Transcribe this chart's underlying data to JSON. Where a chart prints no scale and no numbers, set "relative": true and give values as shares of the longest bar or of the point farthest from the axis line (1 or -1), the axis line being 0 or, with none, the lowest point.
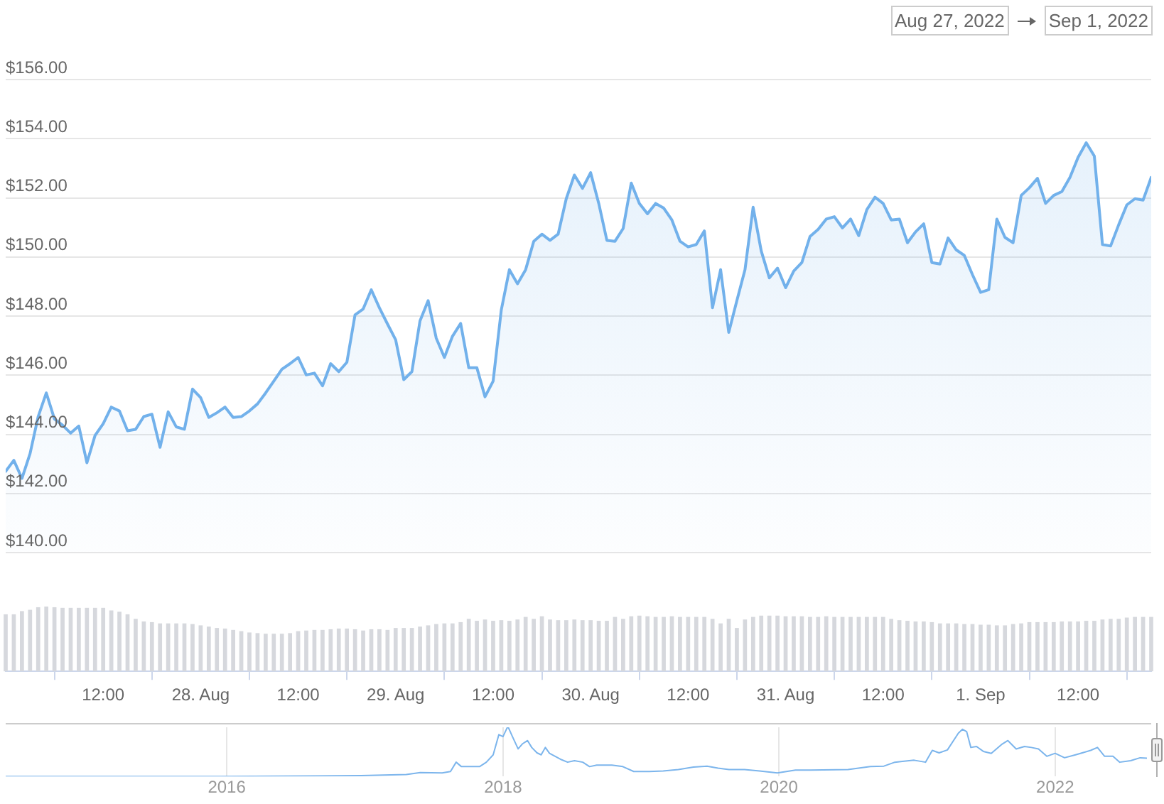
{
  "chart_data": [
    {
      "type": "area",
      "annotations": [
        "Aug 27, 2022",
        "Sep 1, 2022"
      ],
      "grid": "y",
      "tick_labels": "y",
      "color": "#72b1eb",
      "xlim": [
        "2022-08-27T00:00",
        "2022-09-01T21:00"
      ],
      "ylim": [
        140,
        156
      ],
      "yticks": [
        {
          "value": 140,
          "label": "$140.00"
        },
        {
          "value": 142,
          "label": "$142.00"
        },
        {
          "value": 144,
          "label": "$144.00"
        },
        {
          "value": 146,
          "label": "$146.00"
        },
        {
          "value": 148,
          "label": "$148.00"
        },
        {
          "value": 150,
          "label": "$150.00"
        },
        {
          "value": 152,
          "label": "$152.00"
        },
        {
          "value": 154,
          "label": "$154.00"
        },
        {
          "value": 156,
          "label": "$156.00"
        }
      ],
      "x": [
        "2022-08-27T00:00",
        "2022-08-27T01:00",
        "2022-08-27T02:00",
        "2022-08-27T03:00",
        "2022-08-27T04:00",
        "2022-08-27T05:00",
        "2022-08-27T06:00",
        "2022-08-27T07:00",
        "2022-08-27T08:00",
        "2022-08-27T09:00",
        "2022-08-27T10:00",
        "2022-08-27T11:00",
        "2022-08-27T12:00",
        "2022-08-27T13:00",
        "2022-08-27T14:00",
        "2022-08-27T15:00",
        "2022-08-27T16:00",
        "2022-08-27T17:00",
        "2022-08-27T18:00",
        "2022-08-27T19:00",
        "2022-08-27T20:00",
        "2022-08-27T21:00",
        "2022-08-27T22:00",
        "2022-08-27T23:00",
        "2022-08-28T00:00",
        "2022-08-28T01:00",
        "2022-08-28T02:00",
        "2022-08-28T03:00",
        "2022-08-28T04:00",
        "2022-08-28T05:00",
        "2022-08-28T06:00",
        "2022-08-28T07:00",
        "2022-08-28T08:00",
        "2022-08-28T09:00",
        "2022-08-28T10:00",
        "2022-08-28T11:00",
        "2022-08-28T12:00",
        "2022-08-28T13:00",
        "2022-08-28T14:00",
        "2022-08-28T15:00",
        "2022-08-28T16:00",
        "2022-08-28T17:00",
        "2022-08-28T18:00",
        "2022-08-28T19:00",
        "2022-08-28T20:00",
        "2022-08-28T21:00",
        "2022-08-28T22:00",
        "2022-08-28T23:00",
        "2022-08-29T00:00",
        "2022-08-29T01:00",
        "2022-08-29T02:00",
        "2022-08-29T03:00",
        "2022-08-29T04:00",
        "2022-08-29T05:00",
        "2022-08-29T06:00",
        "2022-08-29T07:00",
        "2022-08-29T08:00",
        "2022-08-29T09:00",
        "2022-08-29T10:00",
        "2022-08-29T11:00",
        "2022-08-29T12:00",
        "2022-08-29T13:00",
        "2022-08-29T14:00",
        "2022-08-29T15:00",
        "2022-08-29T16:00",
        "2022-08-29T17:00",
        "2022-08-29T18:00",
        "2022-08-29T19:00",
        "2022-08-29T20:00",
        "2022-08-29T21:00",
        "2022-08-29T22:00",
        "2022-08-29T23:00",
        "2022-08-30T00:00",
        "2022-08-30T01:00",
        "2022-08-30T02:00",
        "2022-08-30T03:00",
        "2022-08-30T04:00",
        "2022-08-30T05:00",
        "2022-08-30T06:00",
        "2022-08-30T07:00",
        "2022-08-30T08:00",
        "2022-08-30T09:00",
        "2022-08-30T10:00",
        "2022-08-30T11:00",
        "2022-08-30T12:00",
        "2022-08-30T13:00",
        "2022-08-30T14:00",
        "2022-08-30T15:00",
        "2022-08-30T16:00",
        "2022-08-30T17:00",
        "2022-08-30T18:00",
        "2022-08-30T19:00",
        "2022-08-30T20:00",
        "2022-08-30T21:00",
        "2022-08-30T22:00",
        "2022-08-30T23:00",
        "2022-08-31T00:00",
        "2022-08-31T01:00",
        "2022-08-31T02:00",
        "2022-08-31T03:00",
        "2022-08-31T04:00",
        "2022-08-31T05:00",
        "2022-08-31T06:00",
        "2022-08-31T07:00",
        "2022-08-31T08:00",
        "2022-08-31T09:00",
        "2022-08-31T10:00",
        "2022-08-31T11:00",
        "2022-08-31T12:00",
        "2022-08-31T13:00",
        "2022-08-31T14:00",
        "2022-08-31T15:00",
        "2022-08-31T16:00",
        "2022-08-31T17:00",
        "2022-08-31T18:00",
        "2022-08-31T19:00",
        "2022-08-31T20:00",
        "2022-08-31T21:00",
        "2022-08-31T22:00",
        "2022-08-31T23:00",
        "2022-09-01T00:00",
        "2022-09-01T01:00",
        "2022-09-01T02:00",
        "2022-09-01T03:00",
        "2022-09-01T04:00",
        "2022-09-01T05:00",
        "2022-09-01T06:00",
        "2022-09-01T07:00",
        "2022-09-01T08:00",
        "2022-09-01T09:00",
        "2022-09-01T10:00",
        "2022-09-01T11:00",
        "2022-09-01T12:00",
        "2022-09-01T13:00",
        "2022-09-01T14:00",
        "2022-09-01T15:00",
        "2022-09-01T16:00",
        "2022-09-01T17:00",
        "2022-09-01T18:00",
        "2022-09-01T19:00",
        "2022-09-01T20:00",
        "2022-09-01T21:00"
      ],
      "values": [
        142.75,
        143.12,
        142.51,
        143.35,
        144.6,
        145.4,
        144.52,
        144.31,
        144.04,
        144.28,
        143.04,
        143.96,
        144.36,
        144.92,
        144.79,
        144.12,
        144.17,
        144.6,
        144.68,
        143.56,
        144.76,
        144.25,
        144.17,
        145.53,
        145.24,
        144.57,
        144.73,
        144.92,
        144.57,
        144.6,
        144.79,
        145.03,
        145.4,
        145.8,
        146.2,
        146.39,
        146.6,
        146.01,
        146.07,
        145.64,
        146.39,
        146.12,
        146.44,
        148.04,
        148.24,
        148.89,
        148.28,
        147.73,
        147.2,
        145.85,
        146.12,
        147.84,
        148.52,
        147.25,
        146.6,
        147.32,
        147.75,
        146.25,
        146.25,
        145.27,
        145.8,
        148.2,
        149.57,
        149.09,
        149.57,
        150.53,
        150.77,
        150.56,
        150.77,
        151.97,
        152.77,
        152.32,
        152.85,
        151.81,
        150.56,
        150.53,
        150.96,
        152.5,
        151.81,
        151.46,
        151.81,
        151.65,
        151.25,
        150.53,
        150.34,
        150.42,
        150.88,
        148.28,
        149.57,
        147.45,
        148.52,
        149.57,
        151.68,
        150.2,
        149.29,
        149.62,
        148.96,
        149.52,
        149.81,
        150.69,
        150.93,
        151.28,
        151.36,
        150.98,
        151.28,
        150.72,
        151.6,
        152.02,
        151.81,
        151.25,
        151.28,
        150.48,
        150.85,
        151.12,
        149.81,
        149.76,
        150.64,
        150.24,
        150.05,
        149.4,
        148.8,
        148.89,
        151.28,
        150.66,
        150.48,
        152.08,
        152.34,
        152.66,
        151.81,
        152.08,
        152.21,
        152.69,
        153.37,
        153.86,
        153.41,
        150.42,
        150.37,
        151.09,
        151.76,
        151.97,
        151.92,
        152.69
      ]
    },
    {
      "type": "bar",
      "relative": true,
      "tick_labels": "x",
      "color": "#d6d8dd",
      "xlim": [
        "2022-08-27T00:00",
        "2022-09-01T21:00"
      ],
      "xticks": [
        {
          "value": "2022-08-27T12:00",
          "label": "12:00"
        },
        {
          "value": "2022-08-28T00:00",
          "label": "28. Aug"
        },
        {
          "value": "2022-08-28T12:00",
          "label": "12:00"
        },
        {
          "value": "2022-08-29T00:00",
          "label": "29. Aug"
        },
        {
          "value": "2022-08-29T12:00",
          "label": "12:00"
        },
        {
          "value": "2022-08-30T00:00",
          "label": "30. Aug"
        },
        {
          "value": "2022-08-30T12:00",
          "label": "12:00"
        },
        {
          "value": "2022-08-31T00:00",
          "label": "31. Aug"
        },
        {
          "value": "2022-08-31T12:00",
          "label": "12:00"
        },
        {
          "value": "2022-09-01T00:00",
          "label": "1. Sep"
        },
        {
          "value": "2022-09-01T12:00",
          "label": "12:00"
        }
      ],
      "x": [
        "2022-08-27T00:00",
        "2022-08-27T01:00",
        "2022-08-27T02:00",
        "2022-08-27T03:00",
        "2022-08-27T04:00",
        "2022-08-27T05:00",
        "2022-08-27T06:00",
        "2022-08-27T07:00",
        "2022-08-27T08:00",
        "2022-08-27T09:00",
        "2022-08-27T10:00",
        "2022-08-27T11:00",
        "2022-08-27T12:00",
        "2022-08-27T13:00",
        "2022-08-27T14:00",
        "2022-08-27T15:00",
        "2022-08-27T16:00",
        "2022-08-27T17:00",
        "2022-08-27T18:00",
        "2022-08-27T19:00",
        "2022-08-27T20:00",
        "2022-08-27T21:00",
        "2022-08-27T22:00",
        "2022-08-27T23:00",
        "2022-08-28T00:00",
        "2022-08-28T01:00",
        "2022-08-28T02:00",
        "2022-08-28T03:00",
        "2022-08-28T04:00",
        "2022-08-28T05:00",
        "2022-08-28T06:00",
        "2022-08-28T07:00",
        "2022-08-28T08:00",
        "2022-08-28T09:00",
        "2022-08-28T10:00",
        "2022-08-28T11:00",
        "2022-08-28T12:00",
        "2022-08-28T13:00",
        "2022-08-28T14:00",
        "2022-08-28T15:00",
        "2022-08-28T16:00",
        "2022-08-28T17:00",
        "2022-08-28T18:00",
        "2022-08-28T19:00",
        "2022-08-28T20:00",
        "2022-08-28T21:00",
        "2022-08-28T22:00",
        "2022-08-28T23:00",
        "2022-08-29T00:00",
        "2022-08-29T01:00",
        "2022-08-29T02:00",
        "2022-08-29T03:00",
        "2022-08-29T04:00",
        "2022-08-29T05:00",
        "2022-08-29T06:00",
        "2022-08-29T07:00",
        "2022-08-29T08:00",
        "2022-08-29T09:00",
        "2022-08-29T10:00",
        "2022-08-29T11:00",
        "2022-08-29T12:00",
        "2022-08-29T13:00",
        "2022-08-29T14:00",
        "2022-08-29T15:00",
        "2022-08-29T16:00",
        "2022-08-29T17:00",
        "2022-08-29T18:00",
        "2022-08-29T19:00",
        "2022-08-29T20:00",
        "2022-08-29T21:00",
        "2022-08-29T22:00",
        "2022-08-29T23:00",
        "2022-08-30T00:00",
        "2022-08-30T01:00",
        "2022-08-30T02:00",
        "2022-08-30T03:00",
        "2022-08-30T04:00",
        "2022-08-30T05:00",
        "2022-08-30T06:00",
        "2022-08-30T07:00",
        "2022-08-30T08:00",
        "2022-08-30T09:00",
        "2022-08-30T10:00",
        "2022-08-30T11:00",
        "2022-08-30T12:00",
        "2022-08-30T13:00",
        "2022-08-30T14:00",
        "2022-08-30T15:00",
        "2022-08-30T16:00",
        "2022-08-30T17:00",
        "2022-08-30T18:00",
        "2022-08-30T19:00",
        "2022-08-30T20:00",
        "2022-08-30T21:00",
        "2022-08-30T22:00",
        "2022-08-30T23:00",
        "2022-08-31T00:00",
        "2022-08-31T01:00",
        "2022-08-31T02:00",
        "2022-08-31T03:00",
        "2022-08-31T04:00",
        "2022-08-31T05:00",
        "2022-08-31T06:00",
        "2022-08-31T07:00",
        "2022-08-31T08:00",
        "2022-08-31T09:00",
        "2022-08-31T10:00",
        "2022-08-31T11:00",
        "2022-08-31T12:00",
        "2022-08-31T13:00",
        "2022-08-31T14:00",
        "2022-08-31T15:00",
        "2022-08-31T16:00",
        "2022-08-31T17:00",
        "2022-08-31T18:00",
        "2022-08-31T19:00",
        "2022-08-31T20:00",
        "2022-08-31T21:00",
        "2022-08-31T22:00",
        "2022-08-31T23:00",
        "2022-09-01T00:00",
        "2022-09-01T01:00",
        "2022-09-01T02:00",
        "2022-09-01T03:00",
        "2022-09-01T04:00",
        "2022-09-01T05:00",
        "2022-09-01T06:00",
        "2022-09-01T07:00",
        "2022-09-01T08:00",
        "2022-09-01T09:00",
        "2022-09-01T10:00",
        "2022-09-01T11:00",
        "2022-09-01T12:00",
        "2022-09-01T13:00",
        "2022-09-01T14:00",
        "2022-09-01T15:00",
        "2022-09-01T16:00",
        "2022-09-01T17:00",
        "2022-09-01T18:00",
        "2022-09-01T19:00",
        "2022-09-01T20:00",
        "2022-09-01T21:00"
      ],
      "values": [
        0.88,
        0.88,
        0.93,
        0.95,
        0.99,
        1,
        0.99,
        0.98,
        0.98,
        0.98,
        0.98,
        0.98,
        0.98,
        0.94,
        0.92,
        0.88,
        0.81,
        0.77,
        0.76,
        0.74,
        0.74,
        0.74,
        0.74,
        0.73,
        0.71,
        0.69,
        0.67,
        0.66,
        0.64,
        0.62,
        0.6,
        0.59,
        0.58,
        0.58,
        0.58,
        0.59,
        0.62,
        0.63,
        0.64,
        0.64,
        0.65,
        0.66,
        0.66,
        0.65,
        0.63,
        0.65,
        0.65,
        0.64,
        0.67,
        0.67,
        0.67,
        0.69,
        0.71,
        0.73,
        0.74,
        0.74,
        0.76,
        0.81,
        0.78,
        0.8,
        0.78,
        0.79,
        0.78,
        0.8,
        0.84,
        0.81,
        0.85,
        0.8,
        0.79,
        0.79,
        0.8,
        0.79,
        0.79,
        0.78,
        0.78,
        0.84,
        0.81,
        0.85,
        0.86,
        0.85,
        0.84,
        0.84,
        0.85,
        0.84,
        0.84,
        0.84,
        0.84,
        0.81,
        0.74,
        0.81,
        0.67,
        0.8,
        0.84,
        0.86,
        0.86,
        0.86,
        0.85,
        0.85,
        0.85,
        0.84,
        0.84,
        0.85,
        0.84,
        0.84,
        0.84,
        0.84,
        0.84,
        0.84,
        0.84,
        0.81,
        0.79,
        0.78,
        0.77,
        0.77,
        0.76,
        0.74,
        0.74,
        0.74,
        0.73,
        0.73,
        0.72,
        0.72,
        0.71,
        0.71,
        0.73,
        0.74,
        0.76,
        0.76,
        0.76,
        0.76,
        0.77,
        0.77,
        0.77,
        0.78,
        0.78,
        0.8,
        0.81,
        0.81,
        0.83,
        0.84,
        0.84,
        0.84
      ]
    },
    {
      "type": "line",
      "relative": true,
      "grid": "x",
      "tick_labels": "x",
      "color": "#7cb5ec",
      "xlim": [
        "2014-05-26",
        "2022-09-01"
      ],
      "xticks": [
        {
          "value": "2016-01-01",
          "label": "2016"
        },
        {
          "value": "2018-01-01",
          "label": "2018"
        },
        {
          "value": "2020-01-01",
          "label": "2020"
        },
        {
          "value": "2022-01-01",
          "label": "2022"
        }
      ],
      "x": [
        "2014-05-26",
        "2015-12-16",
        "2016-08-29",
        "2017-01-11",
        "2017-04-20",
        "2017-05-27",
        "2017-07-24",
        "2017-08-15",
        "2017-08-30",
        "2017-09-13",
        "2017-10-31",
        "2017-11-18",
        "2017-12-06",
        "2017-12-21",
        "2018-01-01",
        "2018-01-12",
        "2018-01-15",
        "2018-01-26",
        "2018-02-10",
        "2018-02-21",
        "2018-03-07",
        "2018-03-18",
        "2018-04-01",
        "2018-04-12",
        "2018-04-23",
        "2018-05-04",
        "2018-06-02",
        "2018-06-21",
        "2018-07-09",
        "2018-07-31",
        "2018-08-18",
        "2018-09-06",
        "2018-10-16",
        "2018-11-14",
        "2018-12-13",
        "2019-01-23",
        "2019-03-01",
        "2019-04-10",
        "2019-05-20",
        "2019-06-25",
        "2019-07-24",
        "2019-08-22",
        "2019-10-02",
        "2019-11-11",
        "2019-12-28",
        "2020-02-14",
        "2020-03-25",
        "2020-07-02",
        "2020-08-30",
        "2020-10-05",
        "2020-11-03",
        "2020-12-24",
        "2021-01-23",
        "2021-02-10",
        "2021-02-28",
        "2021-03-22",
        "2021-04-20",
        "2021-05-01",
        "2021-05-12",
        "2021-05-23",
        "2021-06-07",
        "2021-06-25",
        "2021-07-16",
        "2021-08-14",
        "2021-08-29",
        "2021-09-20",
        "2021-10-12",
        "2021-10-30",
        "2021-11-18",
        "2021-12-10",
        "2022-01-01",
        "2022-01-26",
        "2022-02-24",
        "2022-04-05",
        "2022-04-23",
        "2022-05-12",
        "2022-06-03",
        "2022-06-21",
        "2022-07-20",
        "2022-08-14",
        "2022-09-01"
      ],
      "values": [
        0,
        0,
        0.01,
        0.02,
        0.04,
        0.08,
        0.07,
        0.1,
        0.29,
        0.2,
        0.2,
        0.29,
        0.44,
        0.85,
        0.81,
        0.99,
        1,
        0.81,
        0.56,
        0.66,
        0.73,
        0.59,
        0.48,
        0.44,
        0.59,
        0.47,
        0.35,
        0.29,
        0.32,
        0.29,
        0.2,
        0.23,
        0.23,
        0.2,
        0.1,
        0.1,
        0.11,
        0.14,
        0.19,
        0.21,
        0.17,
        0.14,
        0.14,
        0.11,
        0.07,
        0.13,
        0.13,
        0.14,
        0.2,
        0.21,
        0.29,
        0.33,
        0.29,
        0.53,
        0.48,
        0.54,
        0.88,
        0.96,
        0.91,
        0.59,
        0.61,
        0.51,
        0.47,
        0.66,
        0.73,
        0.56,
        0.61,
        0.59,
        0.56,
        0.41,
        0.47,
        0.38,
        0.44,
        0.53,
        0.59,
        0.41,
        0.41,
        0.29,
        0.32,
        0.38,
        0.37
      ]
    }
  ]
}
